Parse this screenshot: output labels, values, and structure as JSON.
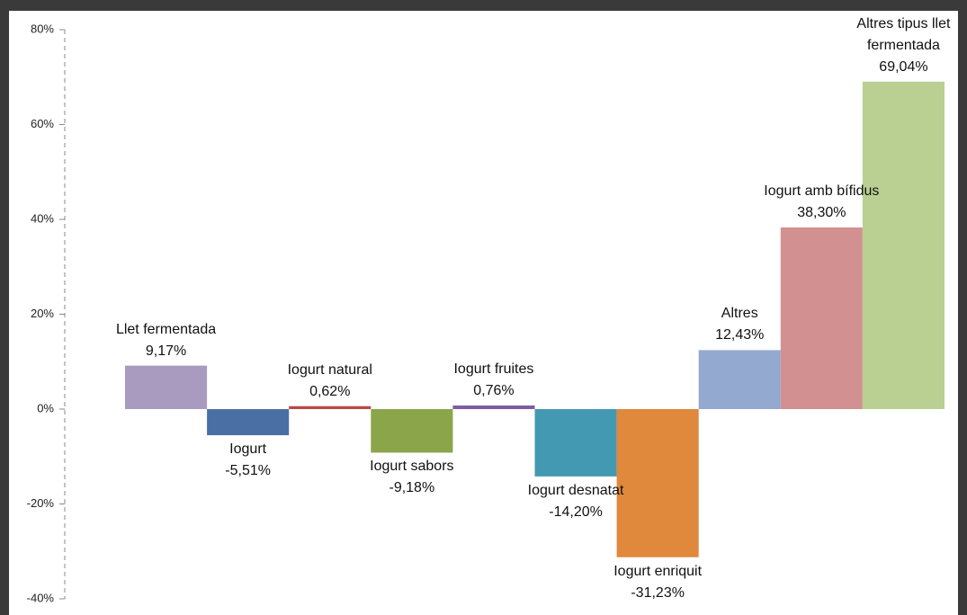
{
  "chart_data": {
    "type": "bar",
    "categories": [
      "Llet fermentada",
      "Iogurt",
      "Iogurt natural",
      "Iogurt sabors",
      "Iogurt fruites",
      "Iogurt desnatat",
      "Iogurt enriquit",
      "Altres",
      "Iogurt amb bífidus",
      "Altres tipus llet fermentada"
    ],
    "values": [
      9.17,
      -5.51,
      0.62,
      -9.18,
      0.76,
      -14.2,
      -31.23,
      12.43,
      38.3,
      69.04
    ],
    "value_labels": [
      "9,17%",
      "-5,51%",
      "0,62%",
      "-9,18%",
      "0,76%",
      "-14,20%",
      "-31,23%",
      "12,43%",
      "38,30%",
      "69,04%"
    ],
    "colors": [
      "#a99bc0",
      "#4a6fa5",
      "#b94a48",
      "#8aa54a",
      "#7c5ea0",
      "#4499b2",
      "#e0883c",
      "#94a9d0",
      "#d39090",
      "#b9d092"
    ],
    "ylim": [
      -40,
      80
    ],
    "yticks": [
      {
        "value": -40,
        "label": "-40%"
      },
      {
        "value": -20,
        "label": "-20%"
      },
      {
        "value": 0,
        "label": "0%"
      },
      {
        "value": 20,
        "label": "20%"
      },
      {
        "value": 40,
        "label": "40%"
      },
      {
        "value": 60,
        "label": "60%"
      },
      {
        "value": 80,
        "label": "80%"
      }
    ]
  }
}
